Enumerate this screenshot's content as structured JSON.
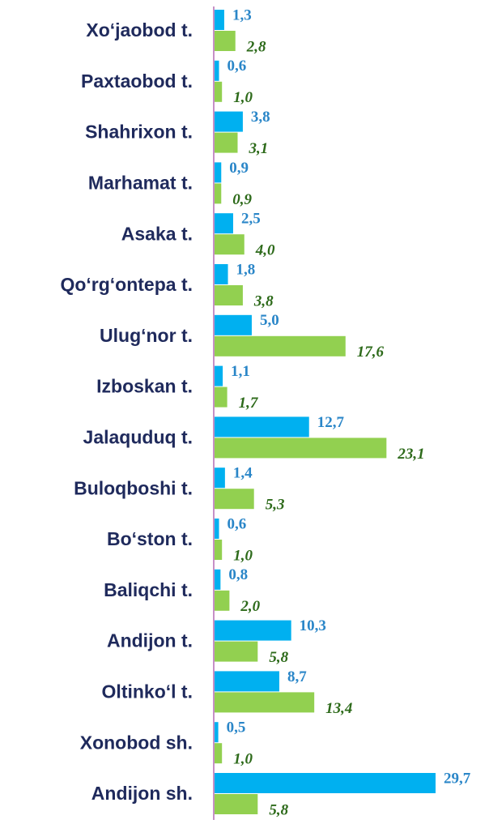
{
  "chart_data": {
    "type": "bar",
    "orientation": "horizontal",
    "categories": [
      "Xo‘jaobod t.",
      "Paxtaobod t.",
      "Shahrixon t.",
      "Marhamat t.",
      "Asaka t.",
      "Qo‘rg‘ontepa t.",
      "Ulug‘nor t.",
      "Izboskan t.",
      "Jalaquduq t.",
      "Buloqboshi t.",
      "Bo‘ston t.",
      "Baliqchi t.",
      "Andijon t.",
      "Oltinko‘l t.",
      "Xonobod sh.",
      "Andijon sh."
    ],
    "series": [
      {
        "color": "#00b0f0",
        "values": [
          1.3,
          0.6,
          3.8,
          0.9,
          2.5,
          1.8,
          5.0,
          1.1,
          12.7,
          1.4,
          0.6,
          0.8,
          10.3,
          8.7,
          0.5,
          29.7
        ],
        "value_labels": [
          "1,3",
          "0,6",
          "3,8",
          "0,9",
          "2,5",
          "1,8",
          "5,0",
          "1,1",
          "12,7",
          "1,4",
          "0,6",
          "0,8",
          "10,3",
          "8,7",
          "0,5",
          "29,7"
        ]
      },
      {
        "color": "#92d050",
        "values": [
          2.8,
          1.0,
          3.1,
          0.9,
          4.0,
          3.8,
          17.6,
          1.7,
          23.1,
          5.3,
          1.0,
          2.0,
          5.8,
          13.4,
          1.0,
          5.8
        ],
        "value_labels": [
          "2,8",
          "1,0",
          "3,1",
          "0,9",
          "4,0",
          "3,8",
          "17,6",
          "1,7",
          "23,1",
          "5,3",
          "1,0",
          "2,0",
          "5,8",
          "13,4",
          "1,0",
          "5,8"
        ]
      }
    ]
  }
}
